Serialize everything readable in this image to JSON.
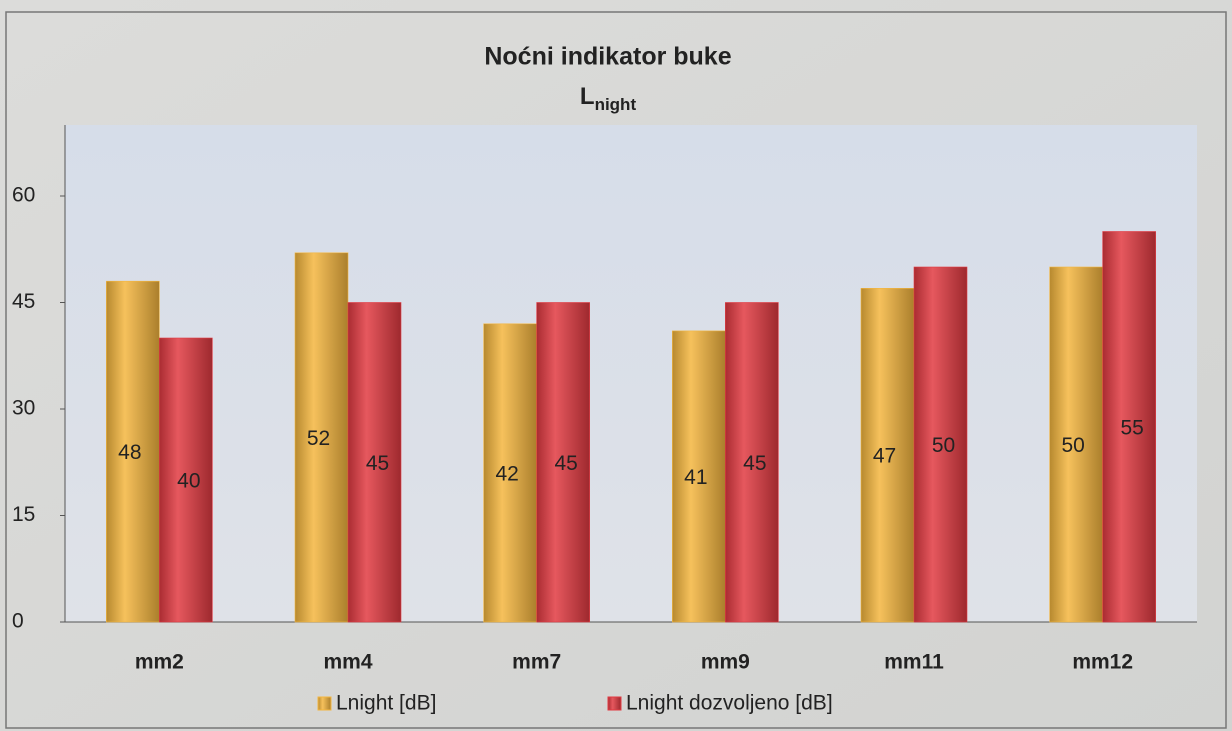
{
  "chart_data": {
    "type": "bar",
    "title": "Noćni indikator buke",
    "subtitle": [
      "L",
      "night"
    ],
    "categories": [
      "mm2",
      "mm4",
      "mm7",
      "mm9",
      "mm11",
      "mm12"
    ],
    "series": [
      {
        "name": "Lnight [dB]",
        "color": "#f4b63f",
        "values": [
          48,
          52,
          42,
          41,
          47,
          50
        ]
      },
      {
        "name": "Lnight dozvoljeno [dB]",
        "color": "#e23a42",
        "values": [
          40,
          45,
          45,
          45,
          50,
          55
        ]
      }
    ],
    "ylim": [
      0,
      70
    ],
    "yticks": [
      0,
      15,
      30,
      45,
      60
    ],
    "grid": false,
    "legend": "bottom"
  }
}
